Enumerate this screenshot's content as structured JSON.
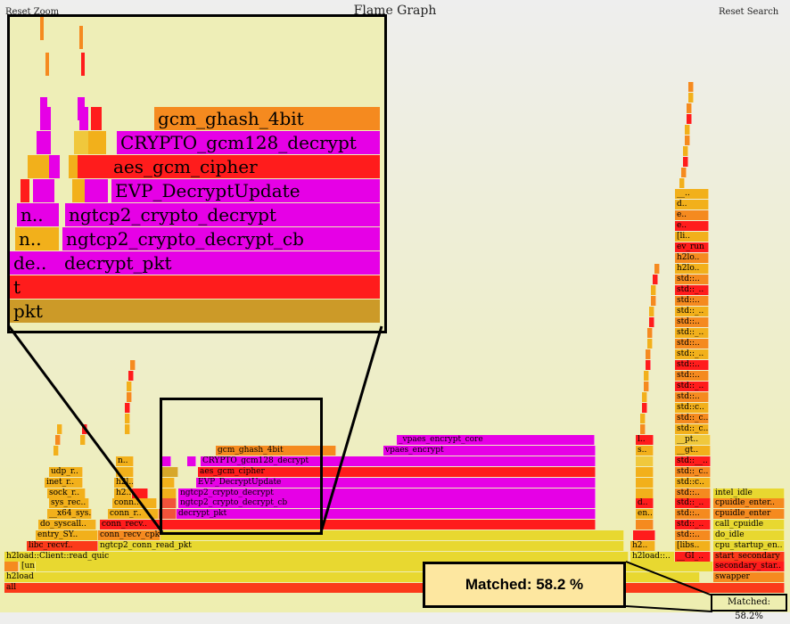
{
  "header": {
    "title": "Flame Graph",
    "reset_zoom": "Reset Zoom",
    "reset_search": "Reset Search"
  },
  "match": {
    "callout": "Matched: 58.2 %",
    "small": "Matched: 58.2%"
  },
  "colors": {
    "highlight": "#e600e6",
    "red": "#ff1c1c",
    "orange": "#f58a1f",
    "yellow": "#e8d830",
    "ochre": "#d7a72a"
  },
  "zoom_panel": {
    "frames": [
      "gcm_ghash_4bit",
      "CRYPTO_gcm128_decrypt",
      "aes_gcm_cipher",
      "EVP_DecryptUpdate",
      "n..",
      "ngtcp2_crypto_decrypt",
      "n..",
      "ngtcp2_crypto_decrypt_cb",
      "de..",
      "decrypt_pkt",
      "t",
      "pkt"
    ]
  },
  "frames": {
    "labels": [
      "all",
      "h2load",
      "[unknown]",
      "h2load::Client::read_quic",
      "libc_recvf..",
      "ngtcp2_conn_read_pkt",
      "entry_SY..",
      "conn_recv_cpkt",
      "do_syscall..",
      "conn_recv..",
      "__x64_sys..",
      "conn_r..",
      "decrypt_pkt",
      "sys_rec..",
      "conn..",
      "ngtcp2_crypto_decrypt_cb",
      "sock_r..",
      "h2..",
      "ngtcp2_crypto_decrypt",
      "inet_r..",
      "h2l..",
      "EVP_DecryptUpdate",
      "udp_r..",
      "n..",
      "aes_gcm_cipher",
      "CRYPTO_gcm128_decrypt",
      "gcm_ghash_4bit",
      "vpaes_encrypt",
      "_vpaes_encrypt_core",
      "h2load::..",
      "h2..",
      "[libs..",
      "start..",
      "__GI_..",
      "start_secondary",
      "secondary_star..",
      "swapper",
      "cpu_startup_en..",
      "do_idle",
      "call_cpuidle",
      "cpuidle_enter",
      "cpuidle_enter..",
      "intel_idle",
      "std::..",
      "std::_..",
      "std::c..",
      "std::_c..",
      "__pt..",
      "__gt..",
      "std::__..",
      "h2lo..",
      "h2lo..",
      "ev_run",
      "[li..",
      "e..",
      "e..",
      "d..",
      "__..",
      "en..",
      "d..",
      "s..",
      "l..",
      "..",
      "e"
    ]
  }
}
